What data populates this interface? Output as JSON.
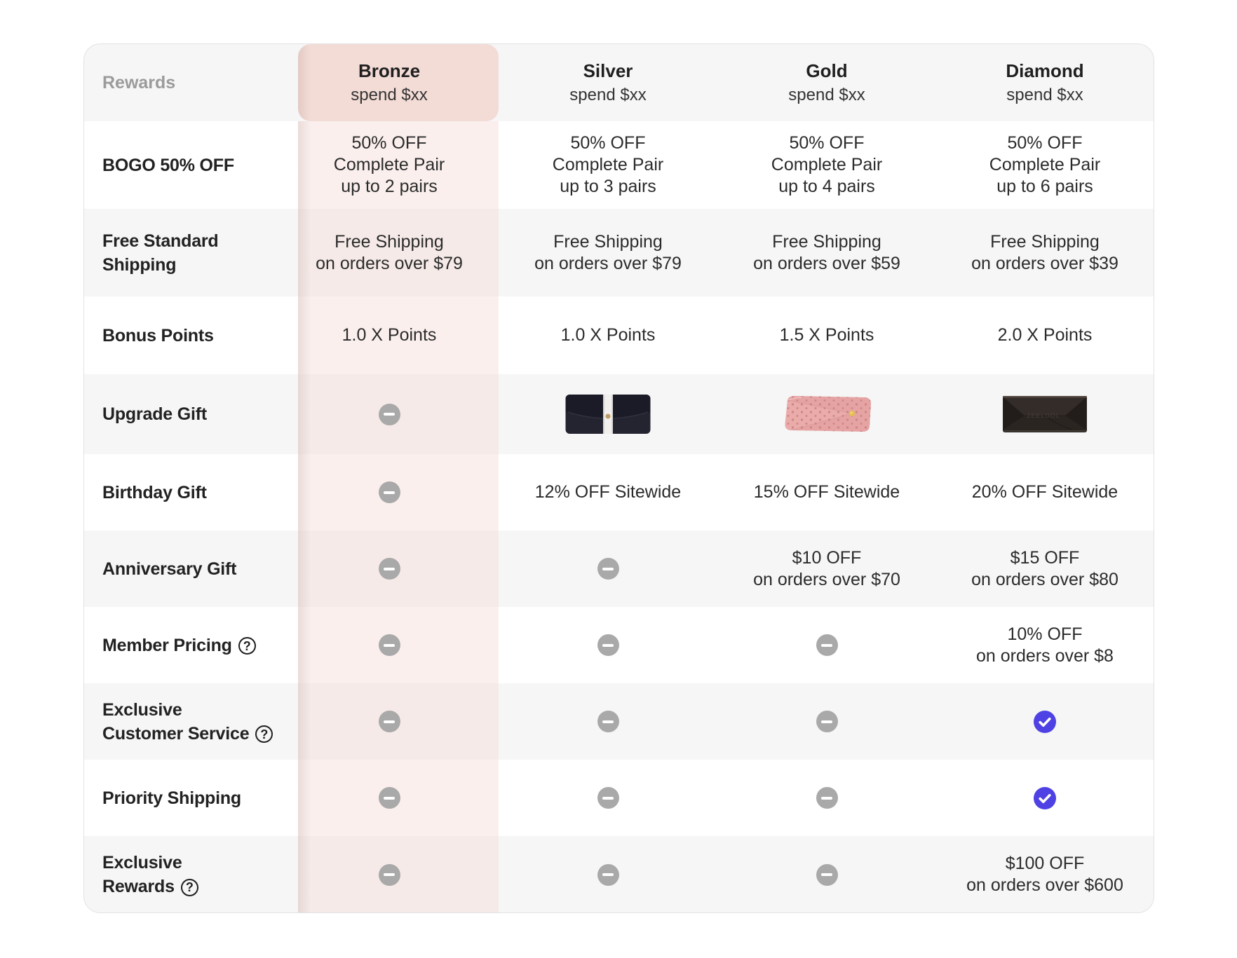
{
  "table": {
    "corner_label": "Rewards",
    "tiers": [
      {
        "id": "bronze",
        "name": "Bronze",
        "subtitle": "spend $xx",
        "highlighted": true
      },
      {
        "id": "silver",
        "name": "Silver",
        "subtitle": "spend $xx",
        "highlighted": false
      },
      {
        "id": "gold",
        "name": "Gold",
        "subtitle": "spend $xx",
        "highlighted": false
      },
      {
        "id": "diamond",
        "name": "Diamond",
        "subtitle": "spend $xx",
        "highlighted": false
      }
    ],
    "rows": [
      {
        "label_lines": [
          "BOGO 50% OFF"
        ],
        "help": false,
        "cells": [
          {
            "type": "text",
            "lines": [
              "50% OFF",
              "Complete Pair",
              "up to 2 pairs"
            ]
          },
          {
            "type": "text",
            "lines": [
              "50% OFF",
              "Complete Pair",
              "up to 3 pairs"
            ]
          },
          {
            "type": "text",
            "lines": [
              "50% OFF",
              "Complete Pair",
              "up to 4 pairs"
            ]
          },
          {
            "type": "text",
            "lines": [
              "50% OFF",
              "Complete Pair",
              "up to 6 pairs"
            ]
          }
        ]
      },
      {
        "label_lines": [
          "Free Standard",
          "Shipping"
        ],
        "help": false,
        "cells": [
          {
            "type": "text",
            "lines": [
              "Free Shipping",
              "on orders over $79"
            ]
          },
          {
            "type": "text",
            "lines": [
              "Free Shipping",
              "on orders over $79"
            ]
          },
          {
            "type": "text",
            "lines": [
              "Free Shipping",
              "on orders over $59"
            ]
          },
          {
            "type": "text",
            "lines": [
              "Free Shipping",
              "on orders over $39"
            ]
          }
        ]
      },
      {
        "label_lines": [
          "Bonus Points"
        ],
        "help": false,
        "cells": [
          {
            "type": "text",
            "lines": [
              "1.0 X Points"
            ]
          },
          {
            "type": "text",
            "lines": [
              "1.0 X Points"
            ]
          },
          {
            "type": "text",
            "lines": [
              "1.5 X Points"
            ]
          },
          {
            "type": "text",
            "lines": [
              "2.0 X Points"
            ]
          }
        ]
      },
      {
        "label_lines": [
          "Upgrade Gift"
        ],
        "help": false,
        "cells": [
          {
            "type": "dash"
          },
          {
            "type": "image",
            "name": "black-woven-glasses-case"
          },
          {
            "type": "image",
            "name": "pink-dotted-glasses-case"
          },
          {
            "type": "image",
            "name": "black-folding-glasses-case"
          }
        ]
      },
      {
        "label_lines": [
          "Birthday Gift"
        ],
        "help": false,
        "cells": [
          {
            "type": "dash"
          },
          {
            "type": "text",
            "lines": [
              "12% OFF Sitewide"
            ]
          },
          {
            "type": "text",
            "lines": [
              "15% OFF Sitewide"
            ]
          },
          {
            "type": "text",
            "lines": [
              "20% OFF Sitewide"
            ]
          }
        ]
      },
      {
        "label_lines": [
          "Anniversary Gift"
        ],
        "help": false,
        "cells": [
          {
            "type": "dash"
          },
          {
            "type": "dash"
          },
          {
            "type": "text",
            "lines": [
              "$10 OFF",
              "on orders over $70"
            ]
          },
          {
            "type": "text",
            "lines": [
              "$15 OFF",
              "on orders over $80"
            ]
          }
        ]
      },
      {
        "label_lines": [
          "Member Pricing"
        ],
        "help": true,
        "cells": [
          {
            "type": "dash"
          },
          {
            "type": "dash"
          },
          {
            "type": "dash"
          },
          {
            "type": "text",
            "lines": [
              "10% OFF",
              "on orders over $8"
            ]
          }
        ]
      },
      {
        "label_lines": [
          "Exclusive",
          "Customer Service"
        ],
        "help": true,
        "cells": [
          {
            "type": "dash"
          },
          {
            "type": "dash"
          },
          {
            "type": "dash"
          },
          {
            "type": "check"
          }
        ]
      },
      {
        "label_lines": [
          "Priority Shipping"
        ],
        "help": false,
        "cells": [
          {
            "type": "dash"
          },
          {
            "type": "dash"
          },
          {
            "type": "dash"
          },
          {
            "type": "check"
          }
        ]
      },
      {
        "label_lines": [
          "Exclusive",
          "Rewards"
        ],
        "help": true,
        "cells": [
          {
            "type": "dash"
          },
          {
            "type": "dash"
          },
          {
            "type": "dash"
          },
          {
            "type": "text",
            "lines": [
              "$100 OFF",
              "on orders over $600"
            ]
          }
        ]
      }
    ]
  },
  "icons": {
    "dash": "minus-circle-icon",
    "check": "check-circle-icon",
    "help": "question-mark-circle-icon"
  },
  "colors": {
    "highlight_header": "#f3dbd6",
    "highlight_tint": "rgba(243,217,211,0.42)",
    "row_alt": "#f6f6f6",
    "dash_circle": "#a9a9a9",
    "check_circle": "#4e42e4"
  }
}
